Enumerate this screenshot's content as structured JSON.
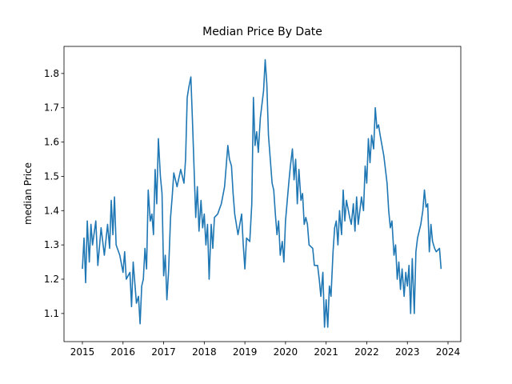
{
  "chart_data": {
    "type": "line",
    "title": "Median Price By Date",
    "ylabel": "median Price",
    "xlim": [
      2014.547,
      2024.315
    ],
    "ylim": [
      1.018,
      1.879
    ],
    "xticks": [
      2015,
      2016,
      2017,
      2018,
      2019,
      2020,
      2021,
      2022,
      2023,
      2024
    ],
    "yticks": [
      1.1,
      1.2,
      1.3,
      1.4,
      1.5,
      1.6,
      1.7,
      1.8
    ],
    "x": [
      2015.0,
      2015.04,
      2015.08,
      2015.12,
      2015.17,
      2015.21,
      2015.25,
      2015.33,
      2015.38,
      2015.46,
      2015.54,
      2015.62,
      2015.67,
      2015.71,
      2015.75,
      2015.79,
      2015.83,
      2015.92,
      2016.0,
      2016.04,
      2016.08,
      2016.17,
      2016.21,
      2016.25,
      2016.33,
      2016.38,
      2016.42,
      2016.46,
      2016.5,
      2016.54,
      2016.58,
      2016.62,
      2016.67,
      2016.71,
      2016.75,
      2016.79,
      2016.83,
      2016.87,
      2016.92,
      2016.96,
      2017.0,
      2017.04,
      2017.08,
      2017.12,
      2017.17,
      2017.21,
      2017.25,
      2017.33,
      2017.42,
      2017.5,
      2017.54,
      2017.58,
      2017.62,
      2017.67,
      2017.71,
      2017.75,
      2017.79,
      2017.83,
      2017.87,
      2017.92,
      2017.96,
      2018.0,
      2018.04,
      2018.08,
      2018.12,
      2018.17,
      2018.21,
      2018.25,
      2018.33,
      2018.42,
      2018.5,
      2018.58,
      2018.62,
      2018.67,
      2018.71,
      2018.75,
      2018.83,
      2018.92,
      2018.96,
      2019.0,
      2019.04,
      2019.12,
      2019.17,
      2019.21,
      2019.25,
      2019.29,
      2019.33,
      2019.38,
      2019.46,
      2019.5,
      2019.54,
      2019.58,
      2019.67,
      2019.71,
      2019.75,
      2019.79,
      2019.83,
      2019.87,
      2019.92,
      2019.96,
      2020.0,
      2020.08,
      2020.12,
      2020.17,
      2020.21,
      2020.25,
      2020.29,
      2020.33,
      2020.38,
      2020.42,
      2020.46,
      2020.5,
      2020.54,
      2020.58,
      2020.67,
      2020.71,
      2020.79,
      2020.83,
      2020.87,
      2020.92,
      2020.96,
      2021.0,
      2021.04,
      2021.08,
      2021.12,
      2021.17,
      2021.21,
      2021.25,
      2021.29,
      2021.33,
      2021.38,
      2021.42,
      2021.46,
      2021.5,
      2021.58,
      2021.62,
      2021.67,
      2021.71,
      2021.75,
      2021.79,
      2021.87,
      2021.92,
      2021.96,
      2022.0,
      2022.04,
      2022.08,
      2022.12,
      2022.17,
      2022.21,
      2022.25,
      2022.29,
      2022.33,
      2022.42,
      2022.5,
      2022.54,
      2022.58,
      2022.62,
      2022.67,
      2022.71,
      2022.75,
      2022.79,
      2022.83,
      2022.87,
      2022.92,
      2022.96,
      2023.0,
      2023.04,
      2023.08,
      2023.12,
      2023.17,
      2023.21,
      2023.25,
      2023.33,
      2023.38,
      2023.42,
      2023.46,
      2023.5,
      2023.54,
      2023.58,
      2023.62,
      2023.67,
      2023.71,
      2023.79,
      2023.83
    ],
    "series": [
      {
        "name": "median Price",
        "color": "#1f77b4",
        "values": [
          1.23,
          1.32,
          1.19,
          1.37,
          1.25,
          1.36,
          1.3,
          1.37,
          1.24,
          1.35,
          1.27,
          1.36,
          1.29,
          1.43,
          1.33,
          1.44,
          1.3,
          1.27,
          1.22,
          1.28,
          1.2,
          1.22,
          1.12,
          1.25,
          1.13,
          1.15,
          1.07,
          1.18,
          1.2,
          1.29,
          1.23,
          1.46,
          1.37,
          1.39,
          1.33,
          1.52,
          1.42,
          1.61,
          1.5,
          1.45,
          1.21,
          1.27,
          1.14,
          1.22,
          1.38,
          1.44,
          1.51,
          1.47,
          1.52,
          1.48,
          1.55,
          1.73,
          1.76,
          1.79,
          1.66,
          1.52,
          1.38,
          1.47,
          1.34,
          1.43,
          1.35,
          1.39,
          1.3,
          1.36,
          1.2,
          1.36,
          1.29,
          1.38,
          1.39,
          1.42,
          1.47,
          1.59,
          1.55,
          1.53,
          1.45,
          1.39,
          1.33,
          1.39,
          1.3,
          1.23,
          1.32,
          1.31,
          1.42,
          1.73,
          1.59,
          1.63,
          1.57,
          1.67,
          1.75,
          1.84,
          1.77,
          1.62,
          1.48,
          1.46,
          1.39,
          1.33,
          1.37,
          1.27,
          1.31,
          1.25,
          1.37,
          1.48,
          1.53,
          1.58,
          1.49,
          1.55,
          1.42,
          1.52,
          1.43,
          1.45,
          1.36,
          1.38,
          1.36,
          1.3,
          1.29,
          1.24,
          1.24,
          1.2,
          1.15,
          1.22,
          1.06,
          1.14,
          1.06,
          1.18,
          1.15,
          1.28,
          1.35,
          1.37,
          1.3,
          1.4,
          1.33,
          1.46,
          1.37,
          1.43,
          1.38,
          1.36,
          1.42,
          1.34,
          1.44,
          1.36,
          1.44,
          1.4,
          1.53,
          1.48,
          1.61,
          1.54,
          1.62,
          1.58,
          1.7,
          1.64,
          1.65,
          1.62,
          1.56,
          1.48,
          1.4,
          1.35,
          1.37,
          1.27,
          1.3,
          1.2,
          1.25,
          1.17,
          1.23,
          1.15,
          1.22,
          1.18,
          1.24,
          1.1,
          1.26,
          1.1,
          1.28,
          1.32,
          1.36,
          1.4,
          1.46,
          1.41,
          1.42,
          1.28,
          1.36,
          1.31,
          1.29,
          1.28,
          1.29,
          1.23
        ]
      }
    ]
  }
}
